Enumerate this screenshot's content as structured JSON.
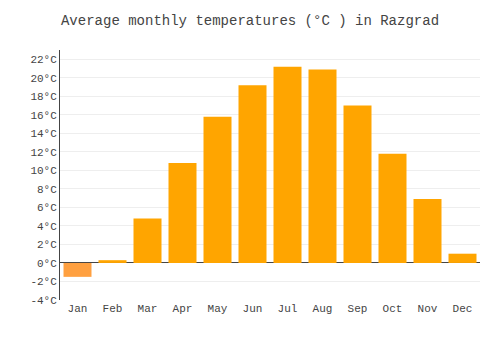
{
  "chart_data": {
    "type": "bar",
    "title": "Average monthly temperatures (°C ) in Razgrad",
    "categories": [
      "Jan",
      "Feb",
      "Mar",
      "Apr",
      "May",
      "Jun",
      "Jul",
      "Aug",
      "Sep",
      "Oct",
      "Nov",
      "Dec"
    ],
    "values": [
      -1.5,
      0.3,
      4.8,
      10.8,
      15.8,
      19.2,
      21.2,
      20.9,
      17.0,
      11.8,
      6.9,
      1.0
    ],
    "colors": [
      "#FFA040",
      "#FFA500",
      "#FFA500",
      "#FFA500",
      "#FFA500",
      "#FFA500",
      "#FFA500",
      "#FFA500",
      "#FFA500",
      "#FFA500",
      "#FFA500",
      "#FFA500"
    ],
    "ylim": [
      -4,
      23
    ],
    "yticks": [
      {
        "value": -4,
        "label": "-4°C"
      },
      {
        "value": -2,
        "label": "-2°C"
      },
      {
        "value": 0,
        "label": "0°C"
      },
      {
        "value": 2,
        "label": "2°C"
      },
      {
        "value": 4,
        "label": "4°C"
      },
      {
        "value": 6,
        "label": "6°C"
      },
      {
        "value": 8,
        "label": "8°C"
      },
      {
        "value": 10,
        "label": "10°C"
      },
      {
        "value": 12,
        "label": "12°C"
      },
      {
        "value": 14,
        "label": "14°C"
      },
      {
        "value": 16,
        "label": "16°C"
      },
      {
        "value": 18,
        "label": "18°C"
      },
      {
        "value": 20,
        "label": "20°C"
      },
      {
        "value": 22,
        "label": "22°C"
      }
    ],
    "grid": true
  }
}
